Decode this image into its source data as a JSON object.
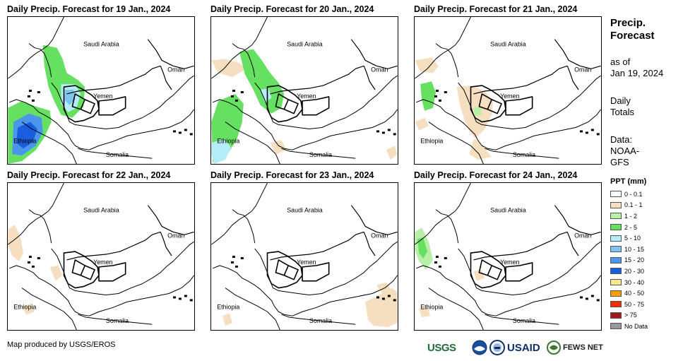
{
  "panels": [
    {
      "id": "p1",
      "title": "Daily Precip. Forecast for 19 Jan., 2024"
    },
    {
      "id": "p2",
      "title": "Daily Precip. Forecast for 20 Jan., 2024"
    },
    {
      "id": "p3",
      "title": "Daily Precip. Forecast for 21 Jan., 2024"
    },
    {
      "id": "p4",
      "title": "Daily Precip. Forecast for 22 Jan., 2024"
    },
    {
      "id": "p5",
      "title": "Daily Precip. Forecast for 23 Jan., 2024"
    },
    {
      "id": "p6",
      "title": "Daily Precip. Forecast for 24 Jan., 2024"
    }
  ],
  "map_labels": {
    "saudi": "Saudi Arabia",
    "oman": "Oman",
    "yemen": "Yemen",
    "ethiopia": "Ethiopia",
    "somalia": "Somalia"
  },
  "sidebar": {
    "title_line1": "Precip.",
    "title_line2": "Forecast",
    "asof_line1": "as of",
    "asof_line2": "Jan 19, 2024",
    "totals_line1": "Daily",
    "totals_line2": "Totals",
    "data_line1": "Data:",
    "data_line2": "NOAA-",
    "data_line3": "GFS"
  },
  "legend": {
    "title": "PPT (mm)",
    "items": [
      {
        "label": "0 - 0.1",
        "color": "#ffffff"
      },
      {
        "label": "0.1 - 1",
        "color": "#f5dfc0"
      },
      {
        "label": "1 - 2",
        "color": "#b8f0a8"
      },
      {
        "label": "2 - 5",
        "color": "#66e060"
      },
      {
        "label": "5 - 10",
        "color": "#b4ecf8"
      },
      {
        "label": "10 - 15",
        "color": "#80c4f2"
      },
      {
        "label": "15 - 20",
        "color": "#4a96ec"
      },
      {
        "label": "20 - 30",
        "color": "#1a5ee0"
      },
      {
        "label": "30 - 40",
        "color": "#fae890"
      },
      {
        "label": "40 - 50",
        "color": "#f8a000"
      },
      {
        "label": "50 - 75",
        "color": "#f03000"
      },
      {
        "label": "> 75",
        "color": "#a01818"
      },
      {
        "label": "No Data",
        "color": "#999999"
      }
    ]
  },
  "footer": {
    "credit": "Map produced by USGS/EROS",
    "usgs": "USGS",
    "usaid": "USAID",
    "fews": "FEWS NET"
  }
}
